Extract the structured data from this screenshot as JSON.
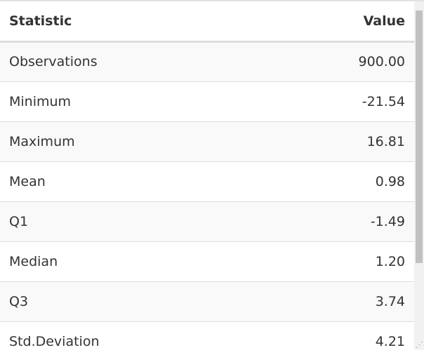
{
  "table": {
    "headers": {
      "statistic": "Statistic",
      "value": "Value"
    },
    "rows": [
      {
        "statistic": "Observations",
        "value": "900.00"
      },
      {
        "statistic": "Minimum",
        "value": "-21.54"
      },
      {
        "statistic": "Maximum",
        "value": "16.81"
      },
      {
        "statistic": "Mean",
        "value": "0.98"
      },
      {
        "statistic": "Q1",
        "value": "-1.49"
      },
      {
        "statistic": "Median",
        "value": "1.20"
      },
      {
        "statistic": "Q3",
        "value": "3.74"
      },
      {
        "statistic": "Std.Deviation",
        "value": "4.21"
      }
    ]
  },
  "colors": {
    "header_border": "#dddddd",
    "row_stripe": "#f9f9f9",
    "text": "#333333",
    "scrollbar_track": "#f1f1f1",
    "scrollbar_thumb": "#c1c1c1"
  },
  "icons": {
    "resize_grip": "resize-grip-icon"
  }
}
